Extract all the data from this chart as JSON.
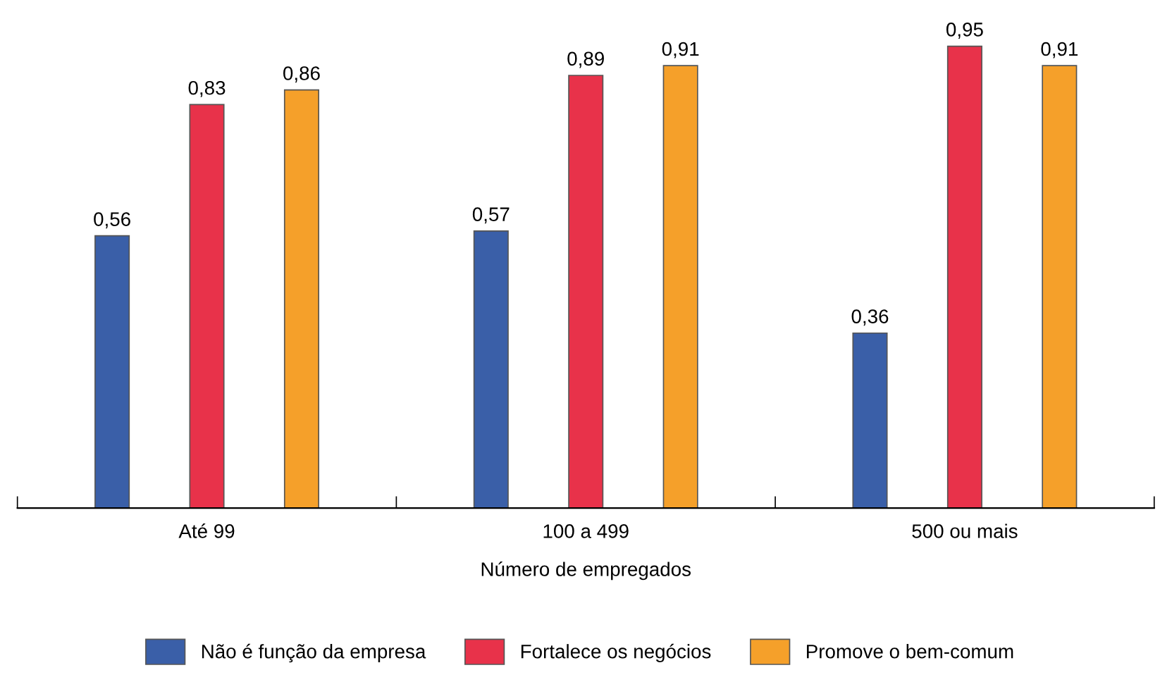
{
  "chart_data": {
    "type": "bar",
    "xlabel": "Número de empregados",
    "categories": [
      "Até 99",
      "100 a 499",
      "500 ou mais"
    ],
    "series": [
      {
        "name": "Não é função da empresa",
        "color": "#3a5fa8",
        "values": [
          0.56,
          0.57,
          0.36
        ],
        "value_labels": [
          "0,56",
          "0,57",
          "0,36"
        ]
      },
      {
        "name": "Fortalece os negócios",
        "color": "#e8324a",
        "values": [
          0.83,
          0.89,
          0.95
        ],
        "value_labels": [
          "0,83",
          "0,89",
          "0,95"
        ]
      },
      {
        "name": "Promove o bem-comum",
        "color": "#f5a02a",
        "values": [
          0.86,
          0.91,
          0.91
        ],
        "value_labels": [
          "0,86",
          "0,91",
          "0,91"
        ]
      }
    ],
    "legend": "bottom",
    "grid": false
  }
}
